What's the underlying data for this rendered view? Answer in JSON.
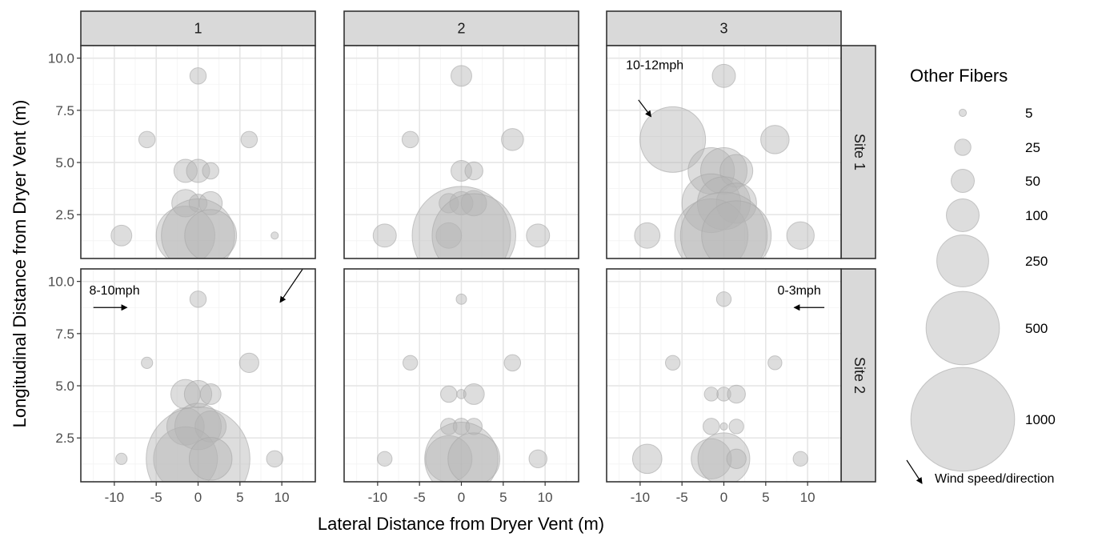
{
  "chart_data": {
    "type": "scatter",
    "xlabel": "Lateral Distance from Dryer Vent (m)",
    "ylabel": "Longitudinal Distance from Dryer Vent (m)",
    "xlim": [
      -14,
      14
    ],
    "ylim": [
      0.4,
      10.6
    ],
    "xticks": [
      -10,
      -5,
      0,
      5,
      10
    ],
    "yticks": [
      2.5,
      5.0,
      7.5,
      10.0
    ],
    "ytick_labels": [
      "2.5",
      "5.0",
      "7.5",
      "10.0"
    ],
    "grid": true,
    "facet_cols": [
      "1",
      "2",
      "3"
    ],
    "facet_rows": [
      "Site 1",
      "Site 2"
    ],
    "size_legend": {
      "title": "Other Fibers",
      "placement": "right",
      "values": [
        5,
        25,
        50,
        100,
        250,
        500,
        1000
      ],
      "labels": [
        "5",
        "25",
        "50",
        "100",
        "250",
        "500",
        "1000"
      ]
    },
    "wind_legend": {
      "label": "Wind speed/direction",
      "icon": "diagonal-arrow-icon"
    },
    "panels": [
      {
        "row": "Site 1",
        "col": "1",
        "wind": null,
        "points": [
          {
            "x": 0,
            "y": 9.15,
            "v": 25
          },
          {
            "x": -6.1,
            "y": 6.1,
            "v": 25
          },
          {
            "x": 6.1,
            "y": 6.1,
            "v": 25
          },
          {
            "x": -1.5,
            "y": 4.6,
            "v": 50
          },
          {
            "x": 0,
            "y": 4.6,
            "v": 50
          },
          {
            "x": 1.5,
            "y": 4.6,
            "v": 25
          },
          {
            "x": -1.5,
            "y": 3.05,
            "v": 70
          },
          {
            "x": 0,
            "y": 3.05,
            "v": 30
          },
          {
            "x": 1.5,
            "y": 3.05,
            "v": 50
          },
          {
            "x": -9.15,
            "y": 1.5,
            "v": 40
          },
          {
            "x": -1.5,
            "y": 1.5,
            "v": 320
          },
          {
            "x": 0,
            "y": 1.5,
            "v": 500
          },
          {
            "x": 1.5,
            "y": 1.5,
            "v": 250
          },
          {
            "x": 9.15,
            "y": 1.5,
            "v": 5
          }
        ]
      },
      {
        "row": "Site 1",
        "col": "2",
        "wind": null,
        "points": [
          {
            "x": 0,
            "y": 9.15,
            "v": 40
          },
          {
            "x": -6.1,
            "y": 6.1,
            "v": 25
          },
          {
            "x": 6.1,
            "y": 6.1,
            "v": 45
          },
          {
            "x": 0,
            "y": 4.6,
            "v": 40
          },
          {
            "x": 1.5,
            "y": 4.6,
            "v": 30
          },
          {
            "x": -1.5,
            "y": 3.05,
            "v": 35
          },
          {
            "x": 0,
            "y": 3.05,
            "v": 50
          },
          {
            "x": 1.5,
            "y": 3.05,
            "v": 60
          },
          {
            "x": -9.15,
            "y": 1.5,
            "v": 50
          },
          {
            "x": -1.5,
            "y": 1.5,
            "v": 60
          },
          {
            "x": 0,
            "y": 1.5,
            "v": 900
          },
          {
            "x": 1.5,
            "y": 1.5,
            "v": 650
          },
          {
            "x": 9.15,
            "y": 1.5,
            "v": 50
          }
        ]
      },
      {
        "row": "Site 1",
        "col": "3",
        "wind": {
          "label": "10-12mph",
          "label_x": -11.7,
          "label_y": 9.7,
          "x1": -10.2,
          "y1": 8.0,
          "x2": -8.7,
          "y2": 7.2
        },
        "points": [
          {
            "x": 0,
            "y": 9.15,
            "v": 50
          },
          {
            "x": -6.1,
            "y": 6.1,
            "v": 400
          },
          {
            "x": 6.1,
            "y": 6.1,
            "v": 75
          },
          {
            "x": -1.5,
            "y": 4.6,
            "v": 200
          },
          {
            "x": 0,
            "y": 4.6,
            "v": 200
          },
          {
            "x": 1.5,
            "y": 4.6,
            "v": 100
          },
          {
            "x": -1.5,
            "y": 3.05,
            "v": 320
          },
          {
            "x": 0,
            "y": 3.05,
            "v": 260
          },
          {
            "x": 1.5,
            "y": 3.05,
            "v": 150
          },
          {
            "x": -9.15,
            "y": 1.5,
            "v": 60
          },
          {
            "x": -1.5,
            "y": 1.5,
            "v": 500
          },
          {
            "x": 0,
            "y": 1.5,
            "v": 700
          },
          {
            "x": 1.5,
            "y": 1.5,
            "v": 450
          },
          {
            "x": 9.15,
            "y": 1.5,
            "v": 70
          }
        ]
      },
      {
        "row": "Site 2",
        "col": "1",
        "wind": {
          "label": "8-10mph",
          "label_x": -13.0,
          "label_y": 9.6,
          "x1": -12.5,
          "y1": 8.75,
          "x2": -8.5,
          "y2": 8.75,
          "x3": 12.5,
          "y3": 10.6,
          "x4": 9.8,
          "y4": 9.0
        },
        "points": [
          {
            "x": 0,
            "y": 9.15,
            "v": 25
          },
          {
            "x": -6.1,
            "y": 6.1,
            "v": 12
          },
          {
            "x": 6.1,
            "y": 6.1,
            "v": 35
          },
          {
            "x": -1.5,
            "y": 4.6,
            "v": 80
          },
          {
            "x": 0,
            "y": 4.6,
            "v": 70
          },
          {
            "x": 1.5,
            "y": 4.6,
            "v": 40
          },
          {
            "x": -1.5,
            "y": 3.05,
            "v": 130
          },
          {
            "x": 0,
            "y": 3.05,
            "v": 200
          },
          {
            "x": 1.5,
            "y": 3.05,
            "v": 90
          },
          {
            "x": -9.15,
            "y": 1.5,
            "v": 12
          },
          {
            "x": -1.5,
            "y": 1.5,
            "v": 380
          },
          {
            "x": 0,
            "y": 1.5,
            "v": 1000
          },
          {
            "x": 1.5,
            "y": 1.5,
            "v": 170
          },
          {
            "x": 9.15,
            "y": 1.5,
            "v": 25
          }
        ]
      },
      {
        "row": "Site 2",
        "col": "2",
        "wind": null,
        "points": [
          {
            "x": 0,
            "y": 9.15,
            "v": 10
          },
          {
            "x": -6.1,
            "y": 6.1,
            "v": 20
          },
          {
            "x": 6.1,
            "y": 6.1,
            "v": 25
          },
          {
            "x": -1.5,
            "y": 4.6,
            "v": 25
          },
          {
            "x": 0,
            "y": 4.6,
            "v": 8
          },
          {
            "x": 1.5,
            "y": 4.6,
            "v": 40
          },
          {
            "x": -1.5,
            "y": 3.05,
            "v": 25
          },
          {
            "x": 0,
            "y": 3.05,
            "v": 25
          },
          {
            "x": 1.5,
            "y": 3.05,
            "v": 25
          },
          {
            "x": -9.15,
            "y": 1.5,
            "v": 20
          },
          {
            "x": -1.5,
            "y": 1.5,
            "v": 200
          },
          {
            "x": 0,
            "y": 1.5,
            "v": 500
          },
          {
            "x": 1.5,
            "y": 1.5,
            "v": 250
          },
          {
            "x": 9.15,
            "y": 1.5,
            "v": 30
          }
        ]
      },
      {
        "row": "Site 2",
        "col": "3",
        "wind": {
          "label": "0-3mph",
          "label_x": 6.4,
          "label_y": 9.6,
          "x1": 12.0,
          "y1": 8.75,
          "x2": 8.4,
          "y2": 8.75
        },
        "points": [
          {
            "x": 0,
            "y": 9.15,
            "v": 20
          },
          {
            "x": -6.1,
            "y": 6.1,
            "v": 20
          },
          {
            "x": 6.1,
            "y": 6.1,
            "v": 18
          },
          {
            "x": -1.5,
            "y": 4.6,
            "v": 18
          },
          {
            "x": 0,
            "y": 4.6,
            "v": 18
          },
          {
            "x": 1.5,
            "y": 4.6,
            "v": 30
          },
          {
            "x": -1.5,
            "y": 3.05,
            "v": 25
          },
          {
            "x": 0,
            "y": 3.05,
            "v": 5
          },
          {
            "x": 1.5,
            "y": 3.05,
            "v": 20
          },
          {
            "x": -9.15,
            "y": 1.5,
            "v": 80
          },
          {
            "x": -1.5,
            "y": 1.5,
            "v": 150
          },
          {
            "x": 0,
            "y": 1.5,
            "v": 250
          },
          {
            "x": 1.5,
            "y": 1.5,
            "v": 35
          },
          {
            "x": 9.15,
            "y": 1.5,
            "v": 20
          }
        ]
      }
    ]
  }
}
